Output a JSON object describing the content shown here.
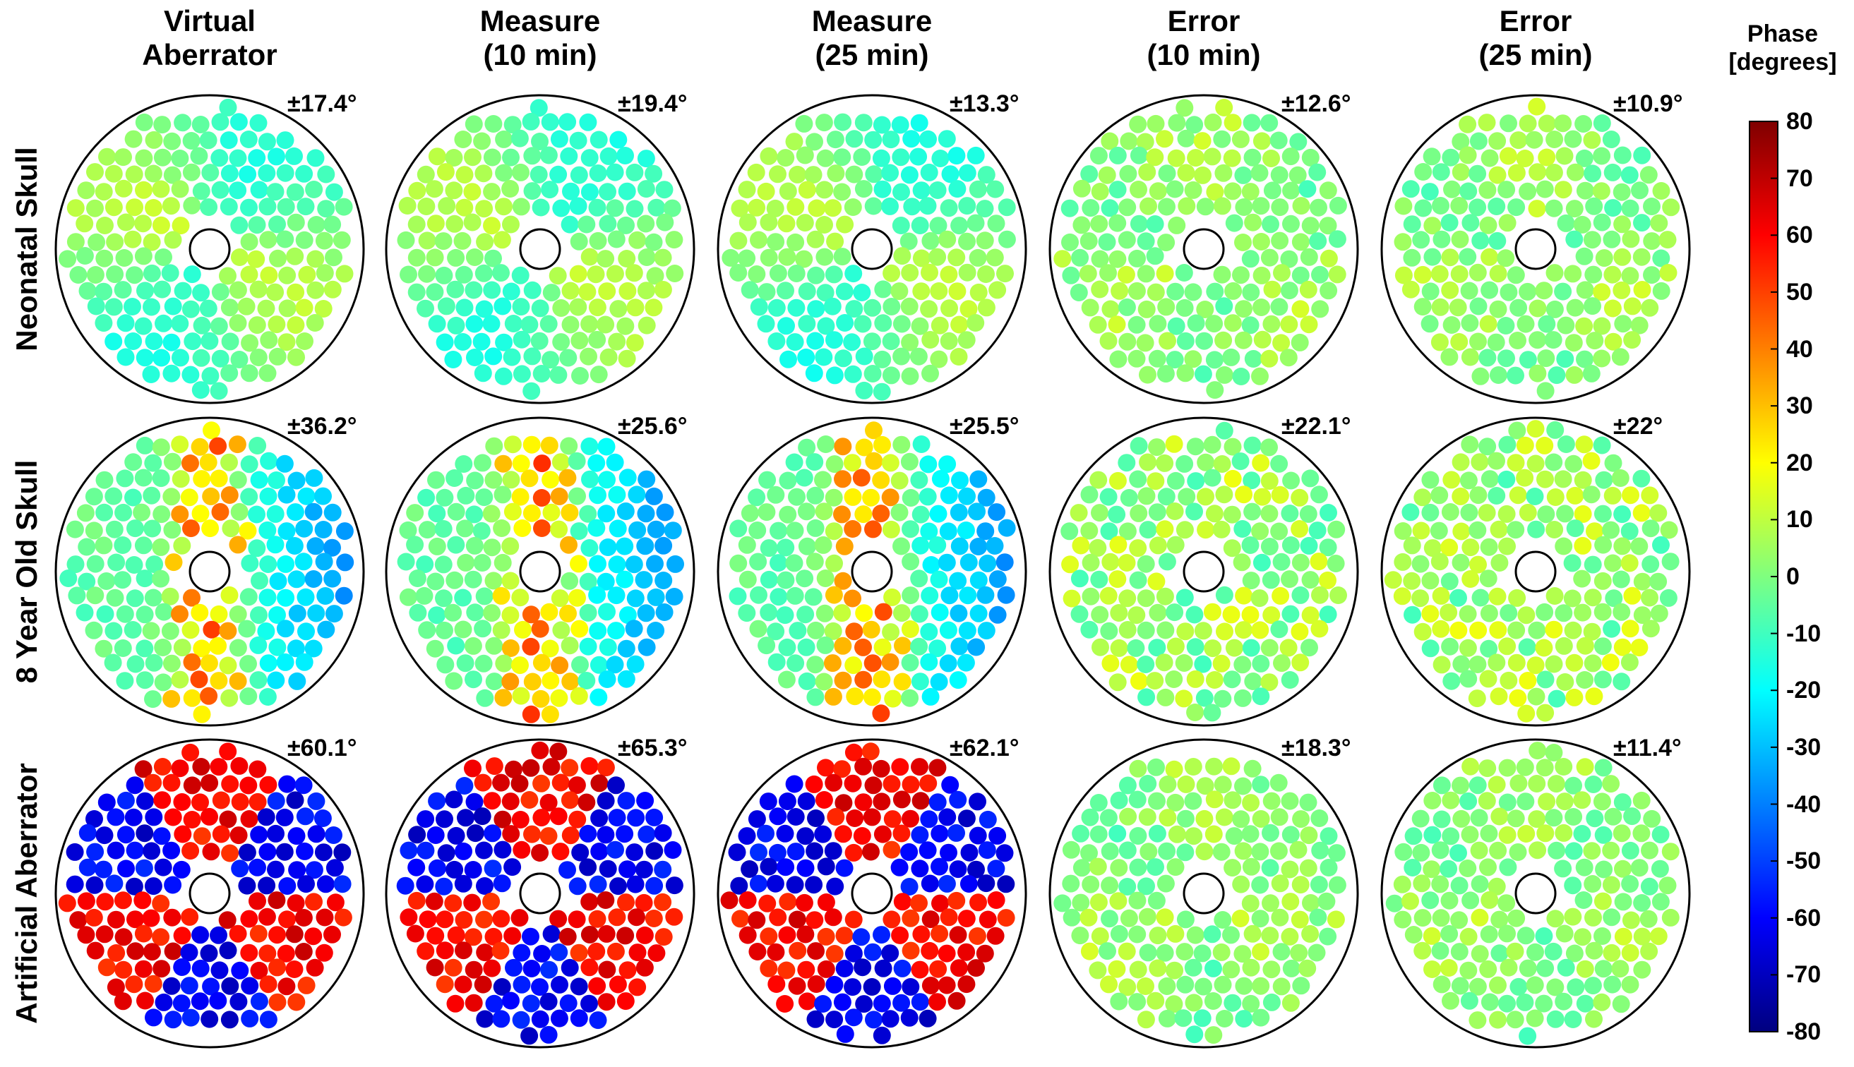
{
  "column_titles": [
    [
      "Virtual",
      "Aberrator"
    ],
    [
      "Measure",
      "(10 min)"
    ],
    [
      "Measure",
      "(25 min)"
    ],
    [
      "Error",
      "(10 min)"
    ],
    [
      "Error",
      "(25 min)"
    ]
  ],
  "row_titles": [
    "Neonatal Skull",
    "8 Year Old Skull",
    "Artificial Aberrator"
  ],
  "rms_labels": [
    [
      "±17.4°",
      "±19.4°",
      "±13.3°",
      "±12.6°",
      "±10.9°"
    ],
    [
      "±36.2°",
      "±25.6°",
      "±25.5°",
      "±22.1°",
      "±22°"
    ],
    [
      "±60.1°",
      "±65.3°",
      "±62.1°",
      "±18.3°",
      "±11.4°"
    ]
  ],
  "colorbar": {
    "title": [
      "Phase",
      "[degrees]"
    ],
    "range": [
      -80,
      80
    ],
    "ticks": [
      "80",
      "70",
      "60",
      "50",
      "40",
      "30",
      "20",
      "10",
      "0",
      "-10",
      "-20",
      "-30",
      "-40",
      "-50",
      "-60",
      "-70",
      "-80"
    ],
    "colormap": "jet"
  },
  "chart_data": {
    "type": "heatmap",
    "description_note": "",
    "panel_pattern": [
      [
        "smooth-low",
        "smooth-low",
        "smooth-low",
        "noise-low",
        "noise-low"
      ],
      [
        "mixed-mid",
        "mixed-mid",
        "mixed-mid",
        "noise-mid",
        "noise-mid"
      ],
      [
        "sectors-high",
        "sectors-high",
        "sectors-high",
        "noise-low",
        "noise-low"
      ]
    ]
  }
}
